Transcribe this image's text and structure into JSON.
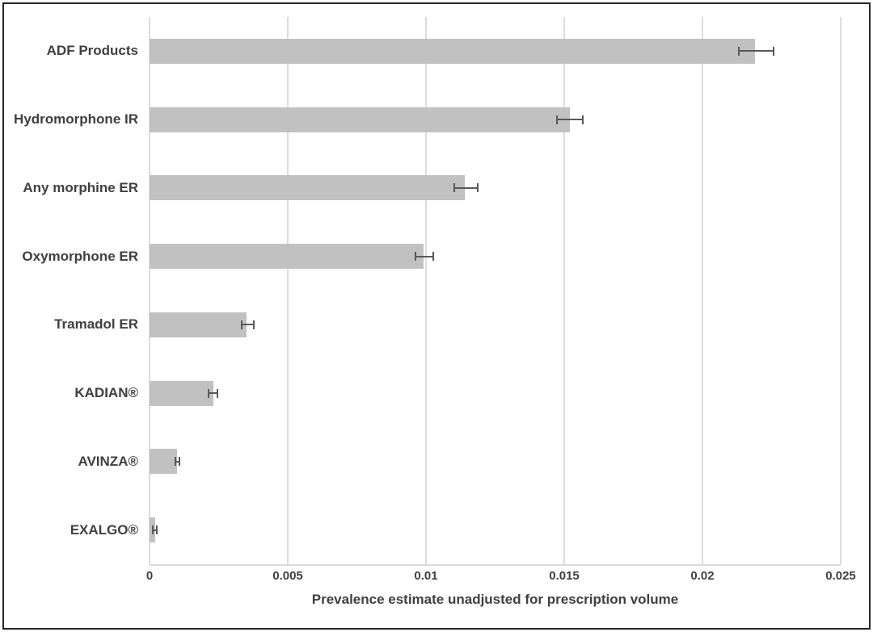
{
  "chart_data": {
    "type": "bar",
    "orientation": "horizontal",
    "title": "",
    "xlabel": "Prevalence estimate unadjusted for prescription volume",
    "ylabel": "",
    "categories": [
      "ADF Products",
      "Hydromorphone IR",
      "Any morphine ER",
      "Oxymorphone ER",
      "Tramadol ER",
      "KADIAN®",
      "AVINZA®",
      "EXALGO®"
    ],
    "values": [
      0.0219,
      0.0152,
      0.0114,
      0.0099,
      0.0035,
      0.0023,
      0.001,
      0.0002
    ],
    "error_low": [
      0.0213,
      0.0147,
      0.011,
      0.0096,
      0.0033,
      0.0021,
      0.0009,
      0.0001
    ],
    "error_high": [
      0.0226,
      0.0157,
      0.0119,
      0.0103,
      0.0038,
      0.0025,
      0.0011,
      0.0003
    ],
    "xlim": [
      0,
      0.025
    ],
    "x_ticks": [
      0,
      0.005,
      0.01,
      0.015,
      0.02,
      0.025
    ],
    "x_tick_labels": [
      "0",
      "0.005",
      "0.01",
      "0.015",
      "0.02",
      "0.025"
    ],
    "grid": true,
    "legend": false,
    "colors": {
      "bar_fill": "#c1c1c1",
      "error_bar": "#595959",
      "gridline": "#dcdcdc",
      "axis_text": "#3f3f3f",
      "frame_border": "#262626",
      "background": "#ffffff"
    }
  }
}
